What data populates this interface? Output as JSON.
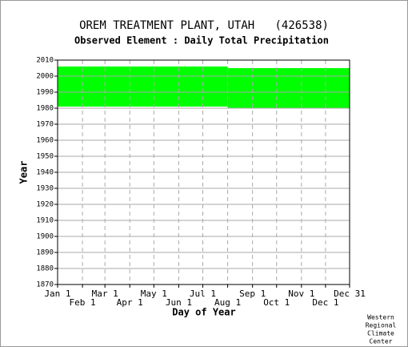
{
  "chart_data": {
    "type": "range",
    "title": "OREM TREATMENT PLANT, UTAH   (426538)",
    "subtitle": "Observed Element : Daily Total Precipitation",
    "ylabel": "Year",
    "xlabel": "Day of Year",
    "footer": [
      "Western",
      "Regional",
      "Climate",
      "Center"
    ],
    "color": "#00ff00",
    "ranges": [
      {
        "x": [
          1,
          213
        ],
        "y": [
          1981,
          2006
        ]
      },
      {
        "x": [
          213,
          365
        ],
        "y": [
          1980,
          2005
        ]
      }
    ],
    "xlim": [
      1,
      365
    ],
    "xticks": [
      {
        "value": 1,
        "label": "Jan 1"
      },
      {
        "value": 32,
        "label": "Feb 1"
      },
      {
        "value": 60,
        "label": "Mar 1"
      },
      {
        "value": 91,
        "label": "Apr 1"
      },
      {
        "value": 121,
        "label": "May 1"
      },
      {
        "value": 152,
        "label": "Jun 1"
      },
      {
        "value": 182,
        "label": "Jul 1"
      },
      {
        "value": 213,
        "label": "Aug 1"
      },
      {
        "value": 244,
        "label": "Sep 1"
      },
      {
        "value": 274,
        "label": "Oct 1"
      },
      {
        "value": 305,
        "label": "Nov 1"
      },
      {
        "value": 335,
        "label": "Dec 1"
      },
      {
        "value": 365,
        "label": "Dec 31"
      }
    ],
    "ylim": [
      1870,
      2010
    ],
    "yticks": [
      1870,
      1880,
      1890,
      1900,
      1910,
      1920,
      1930,
      1940,
      1950,
      1960,
      1970,
      1980,
      1990,
      2000,
      2010
    ],
    "grid": true
  }
}
